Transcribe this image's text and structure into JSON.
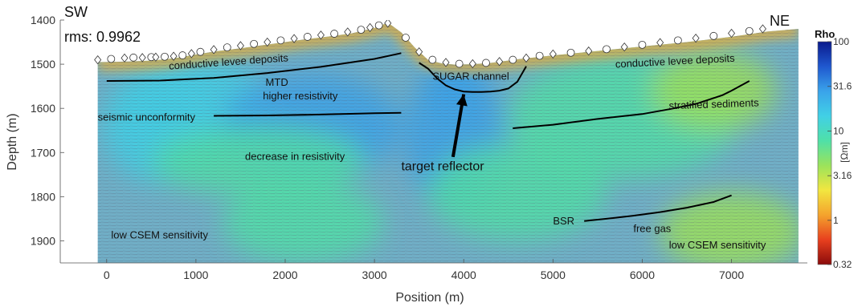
{
  "chart_data": {
    "type": "heatmap",
    "title": "",
    "xlabel": "Position (m)",
    "ylabel": "Depth (m)",
    "xlim": [
      -520,
      7850
    ],
    "ylim": [
      1400,
      1950
    ],
    "y_reversed": true,
    "x_ticks": [
      0,
      1000,
      2000,
      3000,
      4000,
      5000,
      6000,
      7000
    ],
    "y_ticks": [
      1400,
      1500,
      1600,
      1700,
      1800,
      1900
    ],
    "grid": false,
    "corner_labels": {
      "left": "SW",
      "right": "NE",
      "rms": "rms: 0.9962"
    },
    "colorbar": {
      "title": "Rho",
      "unit": "[Ωm]",
      "scale": "log",
      "ticks": [
        "100",
        "31.6",
        "10",
        "3.16",
        "1",
        "0.32"
      ],
      "tick_values": [
        100,
        31.6,
        10,
        3.16,
        1,
        0.32
      ],
      "colors": [
        "#0a1a8c",
        "#1f58cf",
        "#3aa3ea",
        "#41d0e6",
        "#4fe0a8",
        "#9be35b",
        "#f2e640",
        "#f4a32d",
        "#e8401e",
        "#8a0b0b"
      ]
    },
    "seafloor_profile": {
      "x": [
        -100,
        0,
        250,
        500,
        750,
        1000,
        1250,
        1500,
        1750,
        2000,
        2250,
        2500,
        2750,
        3000,
        3150,
        3300,
        3450,
        3600,
        3750,
        3900,
        4100,
        4300,
        4600,
        5000,
        5500,
        6000,
        6500,
        7000,
        7400,
        7750
      ],
      "y": [
        1495,
        1495,
        1494,
        1492,
        1487,
        1478,
        1470,
        1464,
        1457,
        1450,
        1443,
        1437,
        1430,
        1418,
        1406,
        1428,
        1462,
        1490,
        1498,
        1501,
        1500,
        1497,
        1489,
        1480,
        1470,
        1460,
        1450,
        1438,
        1426,
        1420
      ]
    },
    "receivers": {
      "x": [
        -100,
        50,
        200,
        300,
        400,
        500,
        550,
        650,
        750,
        850,
        950,
        1050,
        1200,
        1350,
        1500,
        1650,
        1800,
        1950,
        2100,
        2250,
        2400,
        2550,
        2700,
        2850,
        2950,
        3050,
        3150,
        3350,
        3500,
        3650,
        3800,
        3950,
        4100,
        4250,
        4400,
        4550,
        4700,
        4850,
        5000,
        5200,
        5400,
        5600,
        5800,
        6000,
        6200,
        6400,
        6600,
        6800,
        7000,
        7200,
        7350
      ],
      "y": [
        1490,
        1488,
        1486,
        1485,
        1485,
        1484,
        1484,
        1483,
        1482,
        1480,
        1476,
        1472,
        1467,
        1462,
        1458,
        1454,
        1450,
        1446,
        1442,
        1438,
        1434,
        1431,
        1427,
        1422,
        1417,
        1412,
        1407,
        1440,
        1472,
        1490,
        1496,
        1499,
        1499,
        1497,
        1494,
        1490,
        1486,
        1481,
        1477,
        1474,
        1470,
        1466,
        1461,
        1456,
        1451,
        1446,
        1441,
        1436,
        1430,
        1425,
        1420
      ]
    },
    "interpreted_horizons": [
      {
        "name": "conductive levee deposits",
        "x": [
          0,
          600,
          1200,
          1800,
          2400,
          3000,
          3300
        ],
        "y": [
          1538,
          1537,
          1531,
          1520,
          1506,
          1488,
          1475
        ]
      },
      {
        "name": "seismic unconformity",
        "x": [
          1200,
          1800,
          2400,
          3000,
          3300
        ],
        "y": [
          1617,
          1616,
          1614,
          1611,
          1610
        ]
      },
      {
        "name": "SUGAR channel",
        "x": [
          3500,
          3600,
          3700,
          3800,
          3900,
          4000,
          4100,
          4200,
          4300,
          4400,
          4500,
          4600,
          4700
        ],
        "y": [
          1497,
          1510,
          1532,
          1548,
          1557,
          1562,
          1563,
          1563,
          1562,
          1560,
          1555,
          1540,
          1505
        ]
      },
      {
        "name": "stratified sediments",
        "x": [
          4550,
          5000,
          5500,
          6000,
          6300,
          6600,
          6900,
          7000,
          7200
        ],
        "y": [
          1645,
          1637,
          1624,
          1613,
          1602,
          1590,
          1570,
          1560,
          1538
        ]
      },
      {
        "name": "BSR",
        "x": [
          5350,
          5600,
          5900,
          6200,
          6500,
          6800,
          7000
        ],
        "y": [
          1855,
          1850,
          1843,
          1835,
          1825,
          1812,
          1797
        ]
      }
    ],
    "annotations": [
      {
        "text": "conductive levee deposits",
        "x": 700,
        "y": 1512,
        "rotate": -4
      },
      {
        "text": "MTD",
        "x": 1780,
        "y": 1549
      },
      {
        "text": "higher resistivity",
        "x": 1750,
        "y": 1580
      },
      {
        "text": "seismic unconformity",
        "x": -100,
        "y": 1628
      },
      {
        "text": "SUGAR channel",
        "x": 3650,
        "y": 1535
      },
      {
        "text": "conductive levee deposits",
        "x": 5700,
        "y": 1508,
        "rotate": -3
      },
      {
        "text": "stratified sediments",
        "x": 6300,
        "y": 1602,
        "rotate": -2
      },
      {
        "text": "decrease in resistivity",
        "x": 1550,
        "y": 1717
      },
      {
        "text": "target reflector",
        "x": 3300,
        "y": 1740,
        "big": true
      },
      {
        "text": "low  CSEM sensitivity",
        "x": 50,
        "y": 1895
      },
      {
        "text": "BSR",
        "x": 5000,
        "y": 1863
      },
      {
        "text": "free gas",
        "x": 5900,
        "y": 1880
      },
      {
        "text": "low  CSEM sensitivity",
        "x": 6300,
        "y": 1917
      }
    ],
    "target_reflector_arrow": {
      "from": [
        3880,
        1710
      ],
      "to": [
        4000,
        1568
      ]
    }
  }
}
